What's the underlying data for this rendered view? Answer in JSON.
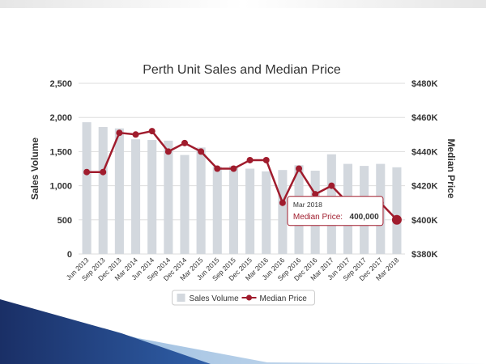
{
  "theme": {
    "bar_color": "#d3d8de",
    "line_color": "#a01c2d",
    "grid_color": "#dddddd",
    "deco_dark": "#1a2f66",
    "deco_light": "#6fa7d8"
  },
  "chart_data": {
    "type": "bar",
    "title": "Perth Unit Sales and Median Price",
    "xlabel": "",
    "ylabel": "Sales Volume",
    "y2label": "Median Price",
    "ylim": [
      0,
      2500
    ],
    "y2lim": [
      380000,
      480000
    ],
    "y_ticks": [
      "0",
      "500",
      "1,000",
      "1,500",
      "2,000",
      "2,500"
    ],
    "y2_ticks": [
      "$380K",
      "$400K",
      "$420K",
      "$440K",
      "$460K",
      "$480K"
    ],
    "grid": true,
    "legend_position": "bottom-center",
    "categories": [
      "Jun 2013",
      "Sep 2013",
      "Dec 2013",
      "Mar 2014",
      "Jun 2014",
      "Sep 2014",
      "Dec 2014",
      "Mar 2015",
      "Jun 2015",
      "Sep 2015",
      "Dec 2015",
      "Mar 2016",
      "Jun 2016",
      "Sep 2016",
      "Dec 2016",
      "Mar 2017",
      "Jun 2017",
      "Sep 2017",
      "Dec 2017",
      "Mar 2018"
    ],
    "series": [
      {
        "name": "Sales Volume",
        "type": "bar",
        "axis": "left",
        "values": [
          1930,
          1860,
          1840,
          1680,
          1670,
          1660,
          1450,
          1560,
          1280,
          1290,
          1250,
          1210,
          1230,
          1300,
          1220,
          1460,
          1320,
          1290,
          1320,
          1270
        ]
      },
      {
        "name": "Median Price",
        "type": "line",
        "axis": "right",
        "values": [
          428000,
          428000,
          451000,
          450000,
          452000,
          440000,
          445000,
          440000,
          430000,
          430000,
          435000,
          435000,
          410000,
          430000,
          415000,
          420000,
          410000,
          405000,
          410000,
          400000
        ]
      }
    ],
    "tooltip": {
      "index": 19,
      "date": "Mar 2018",
      "label": "Median Price:",
      "value": "400,000"
    }
  }
}
